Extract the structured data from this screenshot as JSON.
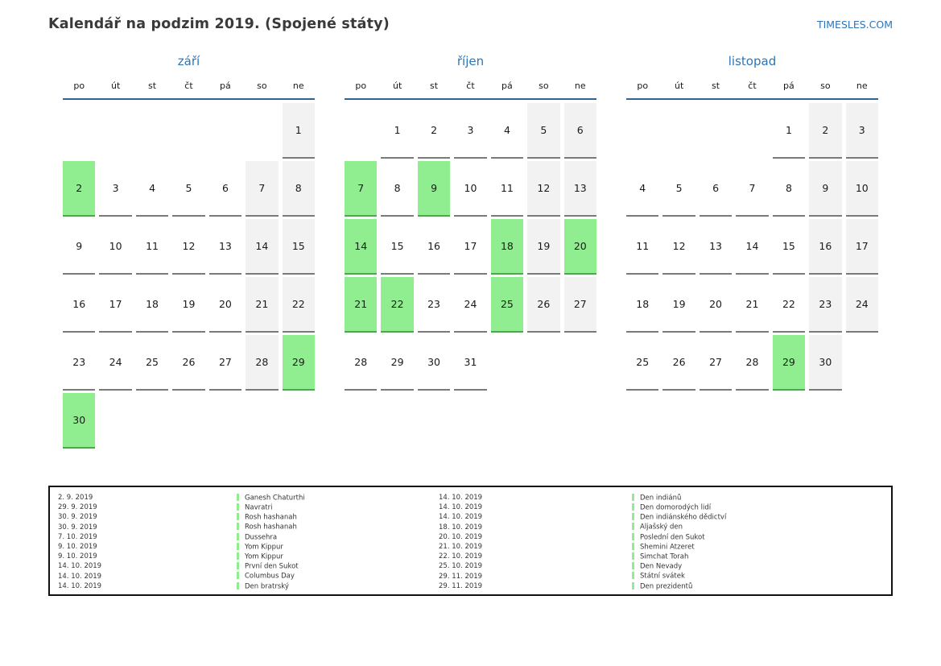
{
  "header": {
    "title": "Kalendář na podzim 2019. (Spojené státy)",
    "brand": "TIMESLES.COM"
  },
  "weekdays": [
    "po",
    "út",
    "st",
    "čt",
    "pá",
    "so",
    "ne"
  ],
  "months": [
    {
      "name": "září",
      "weeks": [
        [
          null,
          null,
          null,
          null,
          null,
          null,
          {
            "d": 1,
            "t": "weekend"
          }
        ],
        [
          {
            "d": 2,
            "t": "holiday"
          },
          {
            "d": 3,
            "t": "work"
          },
          {
            "d": 4,
            "t": "work"
          },
          {
            "d": 5,
            "t": "work"
          },
          {
            "d": 6,
            "t": "work"
          },
          {
            "d": 7,
            "t": "weekend"
          },
          {
            "d": 8,
            "t": "weekend"
          }
        ],
        [
          {
            "d": 9,
            "t": "work"
          },
          {
            "d": 10,
            "t": "work"
          },
          {
            "d": 11,
            "t": "work"
          },
          {
            "d": 12,
            "t": "work"
          },
          {
            "d": 13,
            "t": "work"
          },
          {
            "d": 14,
            "t": "weekend"
          },
          {
            "d": 15,
            "t": "weekend"
          }
        ],
        [
          {
            "d": 16,
            "t": "work"
          },
          {
            "d": 17,
            "t": "work"
          },
          {
            "d": 18,
            "t": "work"
          },
          {
            "d": 19,
            "t": "work"
          },
          {
            "d": 20,
            "t": "work"
          },
          {
            "d": 21,
            "t": "weekend"
          },
          {
            "d": 22,
            "t": "weekend"
          }
        ],
        [
          {
            "d": 23,
            "t": "work"
          },
          {
            "d": 24,
            "t": "work"
          },
          {
            "d": 25,
            "t": "work"
          },
          {
            "d": 26,
            "t": "work"
          },
          {
            "d": 27,
            "t": "work"
          },
          {
            "d": 28,
            "t": "weekend"
          },
          {
            "d": 29,
            "t": "holiday"
          }
        ],
        [
          {
            "d": 30,
            "t": "holiday"
          },
          null,
          null,
          null,
          null,
          null,
          null
        ]
      ]
    },
    {
      "name": "říjen",
      "weeks": [
        [
          null,
          {
            "d": 1,
            "t": "work"
          },
          {
            "d": 2,
            "t": "work"
          },
          {
            "d": 3,
            "t": "work"
          },
          {
            "d": 4,
            "t": "work"
          },
          {
            "d": 5,
            "t": "weekend"
          },
          {
            "d": 6,
            "t": "weekend"
          }
        ],
        [
          {
            "d": 7,
            "t": "holiday"
          },
          {
            "d": 8,
            "t": "work"
          },
          {
            "d": 9,
            "t": "holiday"
          },
          {
            "d": 10,
            "t": "work"
          },
          {
            "d": 11,
            "t": "work"
          },
          {
            "d": 12,
            "t": "weekend"
          },
          {
            "d": 13,
            "t": "weekend"
          }
        ],
        [
          {
            "d": 14,
            "t": "holiday"
          },
          {
            "d": 15,
            "t": "work"
          },
          {
            "d": 16,
            "t": "work"
          },
          {
            "d": 17,
            "t": "work"
          },
          {
            "d": 18,
            "t": "holiday"
          },
          {
            "d": 19,
            "t": "weekend"
          },
          {
            "d": 20,
            "t": "holiday"
          }
        ],
        [
          {
            "d": 21,
            "t": "holiday"
          },
          {
            "d": 22,
            "t": "holiday"
          },
          {
            "d": 23,
            "t": "work"
          },
          {
            "d": 24,
            "t": "work"
          },
          {
            "d": 25,
            "t": "holiday"
          },
          {
            "d": 26,
            "t": "weekend"
          },
          {
            "d": 27,
            "t": "weekend"
          }
        ],
        [
          {
            "d": 28,
            "t": "work"
          },
          {
            "d": 29,
            "t": "work"
          },
          {
            "d": 30,
            "t": "work"
          },
          {
            "d": 31,
            "t": "work"
          },
          null,
          null,
          null
        ]
      ]
    },
    {
      "name": "listopad",
      "weeks": [
        [
          null,
          null,
          null,
          null,
          {
            "d": 1,
            "t": "work"
          },
          {
            "d": 2,
            "t": "weekend"
          },
          {
            "d": 3,
            "t": "weekend"
          }
        ],
        [
          {
            "d": 4,
            "t": "work"
          },
          {
            "d": 5,
            "t": "work"
          },
          {
            "d": 6,
            "t": "work"
          },
          {
            "d": 7,
            "t": "work"
          },
          {
            "d": 8,
            "t": "work"
          },
          {
            "d": 9,
            "t": "weekend"
          },
          {
            "d": 10,
            "t": "weekend"
          }
        ],
        [
          {
            "d": 11,
            "t": "work"
          },
          {
            "d": 12,
            "t": "work"
          },
          {
            "d": 13,
            "t": "work"
          },
          {
            "d": 14,
            "t": "work"
          },
          {
            "d": 15,
            "t": "work"
          },
          {
            "d": 16,
            "t": "weekend"
          },
          {
            "d": 17,
            "t": "weekend"
          }
        ],
        [
          {
            "d": 18,
            "t": "work"
          },
          {
            "d": 19,
            "t": "work"
          },
          {
            "d": 20,
            "t": "work"
          },
          {
            "d": 21,
            "t": "work"
          },
          {
            "d": 22,
            "t": "work"
          },
          {
            "d": 23,
            "t": "weekend"
          },
          {
            "d": 24,
            "t": "weekend"
          }
        ],
        [
          {
            "d": 25,
            "t": "work"
          },
          {
            "d": 26,
            "t": "work"
          },
          {
            "d": 27,
            "t": "work"
          },
          {
            "d": 28,
            "t": "work"
          },
          {
            "d": 29,
            "t": "holiday"
          },
          {
            "d": 30,
            "t": "weekend"
          },
          null
        ]
      ]
    }
  ],
  "legend": {
    "left": [
      {
        "date": "2. 9. 2019",
        "name": "Ganesh Chaturthi"
      },
      {
        "date": "29. 9. 2019",
        "name": "Navratri"
      },
      {
        "date": "30. 9. 2019",
        "name": "Rosh hashanah"
      },
      {
        "date": "30. 9. 2019",
        "name": "Rosh hashanah"
      },
      {
        "date": "7. 10. 2019",
        "name": "Dussehra"
      },
      {
        "date": "9. 10. 2019",
        "name": "Yom Kippur"
      },
      {
        "date": "9. 10. 2019",
        "name": "Yom Kippur"
      },
      {
        "date": "14. 10. 2019",
        "name": "První den Sukot"
      },
      {
        "date": "14. 10. 2019",
        "name": "Columbus Day"
      },
      {
        "date": "14. 10. 2019",
        "name": "Den bratrský"
      }
    ],
    "right": [
      {
        "date": "14. 10. 2019",
        "name": "Den indiánů"
      },
      {
        "date": "14. 10. 2019",
        "name": "Den domorodých lidí"
      },
      {
        "date": "14. 10. 2019",
        "name": "Den indiánského dědictví"
      },
      {
        "date": "18. 10. 2019",
        "name": "Aljašský den"
      },
      {
        "date": "20. 10. 2019",
        "name": "Poslední den Sukot"
      },
      {
        "date": "21. 10. 2019",
        "name": "Shemini Atzeret"
      },
      {
        "date": "22. 10. 2019",
        "name": "Simchat Torah"
      },
      {
        "date": "25. 10. 2019",
        "name": "Den Nevady"
      },
      {
        "date": "29. 11. 2019",
        "name": "Státní svátek"
      },
      {
        "date": "29. 11. 2019",
        "name": "Den prezidentů"
      }
    ]
  },
  "colors": {
    "accent_blue": "#2e75b6",
    "header_rule": "#35618e",
    "holiday_green": "#90ee90",
    "holiday_border": "#56a156",
    "weekend_gray": "#f2f2f2",
    "cell_border": "#7a7a7a"
  }
}
